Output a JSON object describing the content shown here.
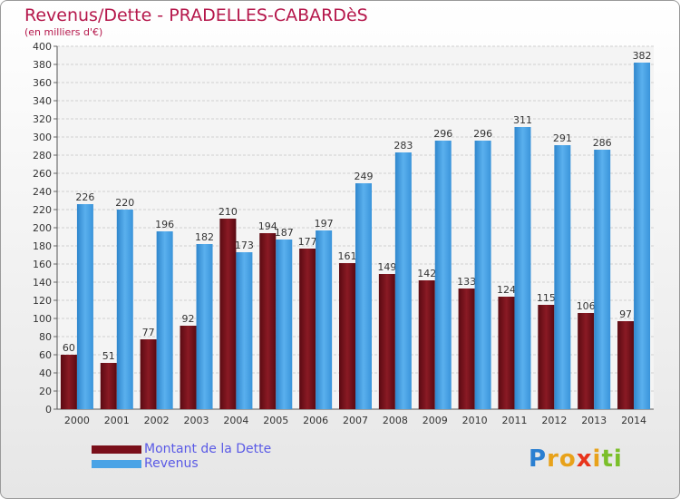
{
  "title": "Revenus/Dette - PRADELLES-CABARDèS",
  "subtitle": "(en milliers d'€)",
  "chart_data": {
    "type": "bar",
    "categories": [
      "2000",
      "2001",
      "2002",
      "2003",
      "2004",
      "2005",
      "2006",
      "2007",
      "2008",
      "2009",
      "2010",
      "2011",
      "2012",
      "2013",
      "2014"
    ],
    "series": [
      {
        "name": "Montant de la Dette",
        "color": "#7a0f1a",
        "values": [
          60,
          51,
          77,
          92,
          210,
          194,
          177,
          161,
          149,
          142,
          133,
          124,
          115,
          106,
          97
        ]
      },
      {
        "name": "Revenus",
        "color": "#4aa3e6",
        "values": [
          226,
          220,
          196,
          182,
          173,
          187,
          197,
          249,
          283,
          296,
          296,
          311,
          291,
          286,
          382
        ]
      }
    ],
    "ylim": [
      0,
      400
    ],
    "ytick_step": 20,
    "grid": true,
    "legend_position": "bottom-left"
  },
  "logo": {
    "letters": [
      "P",
      "r",
      "o",
      "x",
      "i",
      "t",
      "i"
    ],
    "colors": [
      "#2a7fd1",
      "#e8a21a",
      "#e8a21a",
      "#e8341c",
      "#e8a21a",
      "#7bbf2a",
      "#7bbf2a"
    ]
  }
}
